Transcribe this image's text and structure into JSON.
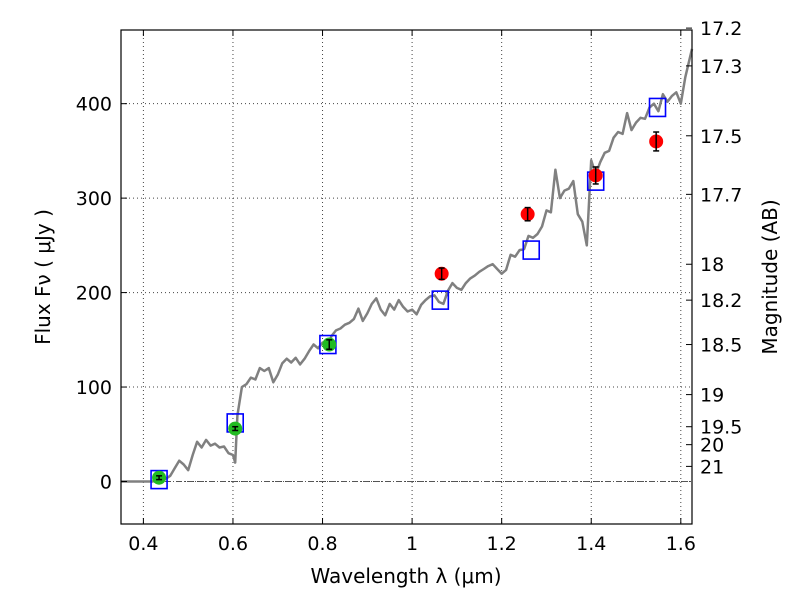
{
  "chart_data": {
    "type": "scatter",
    "title": "",
    "xlabel": "Wavelength  λ (μm)",
    "ylabel": "Flux  Fν  ( μJy )",
    "ylabel_right": "Magnitude (AB)",
    "xlim": [
      0.35,
      1.625
    ],
    "ylim": [
      -45,
      478
    ],
    "xticks": [
      0.4,
      0.6,
      0.8,
      1.0,
      1.2,
      1.4,
      1.6
    ],
    "xtick_labels": [
      "0.4",
      "0.6",
      "0.8",
      "1",
      "1.2",
      "1.4",
      "1.6"
    ],
    "yticks": [
      0,
      100,
      200,
      300,
      400
    ],
    "ytick_labels": [
      "0",
      "100",
      "200",
      "300",
      "400"
    ],
    "right_ticks": [
      {
        "label": "17.2",
        "flux": 480
      },
      {
        "label": "17.3",
        "flux": 440
      },
      {
        "label": "17.5",
        "flux": 366
      },
      {
        "label": "17.7",
        "flux": 304
      },
      {
        "label": "18",
        "flux": 230
      },
      {
        "label": "18.2",
        "flux": 192
      },
      {
        "label": "18.5",
        "flux": 145
      },
      {
        "label": "19",
        "flux": 92
      },
      {
        "label": "19.5",
        "flux": 58
      },
      {
        "label": "20",
        "flux": 39
      },
      {
        "label": "21",
        "flux": 16
      }
    ],
    "grid": true,
    "hline_y": 0,
    "colors": {
      "spectrum": "#808080",
      "model": "#0000ff",
      "optical": "#22bb22",
      "nir": "#ff0000",
      "errorbar": "#000000",
      "grid": "#444444"
    },
    "series": [
      {
        "name": "template spectrum",
        "kind": "line",
        "x": [
          0.35,
          0.4,
          0.41,
          0.42,
          0.43,
          0.44,
          0.45,
          0.46,
          0.47,
          0.48,
          0.49,
          0.5,
          0.51,
          0.52,
          0.53,
          0.54,
          0.55,
          0.56,
          0.57,
          0.58,
          0.59,
          0.6,
          0.605,
          0.61,
          0.62,
          0.63,
          0.64,
          0.65,
          0.66,
          0.67,
          0.68,
          0.69,
          0.7,
          0.71,
          0.72,
          0.73,
          0.74,
          0.75,
          0.76,
          0.77,
          0.78,
          0.79,
          0.8,
          0.81,
          0.82,
          0.83,
          0.84,
          0.85,
          0.86,
          0.87,
          0.88,
          0.89,
          0.9,
          0.91,
          0.92,
          0.93,
          0.94,
          0.95,
          0.96,
          0.97,
          0.98,
          0.99,
          1.0,
          1.01,
          1.02,
          1.03,
          1.04,
          1.05,
          1.06,
          1.07,
          1.08,
          1.09,
          1.1,
          1.11,
          1.12,
          1.13,
          1.14,
          1.15,
          1.16,
          1.17,
          1.18,
          1.19,
          1.2,
          1.21,
          1.22,
          1.23,
          1.24,
          1.25,
          1.26,
          1.27,
          1.28,
          1.29,
          1.3,
          1.31,
          1.32,
          1.33,
          1.34,
          1.35,
          1.36,
          1.37,
          1.38,
          1.39,
          1.4,
          1.41,
          1.42,
          1.43,
          1.44,
          1.45,
          1.46,
          1.47,
          1.48,
          1.49,
          1.5,
          1.51,
          1.52,
          1.53,
          1.54,
          1.55,
          1.56,
          1.57,
          1.58,
          1.59,
          1.6,
          1.61,
          1.625
        ],
        "y": [
          0,
          0,
          0,
          0,
          1,
          3,
          3,
          6,
          14,
          22,
          18,
          12,
          28,
          42,
          36,
          44,
          38,
          40,
          36,
          37,
          30,
          28,
          20,
          70,
          100,
          103,
          110,
          108,
          120,
          117,
          120,
          105,
          113,
          125,
          130,
          126,
          131,
          124,
          130,
          138,
          145,
          141,
          147,
          142,
          154,
          160,
          162,
          166,
          168,
          172,
          183,
          170,
          178,
          188,
          194,
          182,
          176,
          188,
          182,
          192,
          185,
          180,
          182,
          177,
          187,
          192,
          196,
          197,
          190,
          188,
          202,
          210,
          205,
          203,
          210,
          215,
          218,
          222,
          225,
          228,
          230,
          225,
          220,
          224,
          240,
          238,
          245,
          246,
          260,
          258,
          262,
          270,
          287,
          285,
          330,
          300,
          308,
          310,
          318,
          283,
          275,
          250,
          340,
          325,
          338,
          348,
          350,
          364,
          370,
          368,
          390,
          372,
          380,
          385,
          384,
          396,
          400,
          392,
          410,
          402,
          408,
          412,
          400,
          428,
          458
        ]
      },
      {
        "name": "model",
        "kind": "squares",
        "x": [
          0.435,
          0.605,
          0.812,
          1.063,
          1.266,
          1.41,
          1.548
        ],
        "y": [
          2,
          62,
          145,
          192,
          245,
          318,
          396
        ]
      },
      {
        "name": "optical",
        "kind": "points",
        "x": [
          0.435,
          0.605,
          0.815
        ],
        "y": [
          4,
          56,
          145
        ],
        "err": [
          2,
          2,
          5
        ]
      },
      {
        "name": "nir",
        "kind": "points",
        "x": [
          1.066,
          1.258,
          1.41,
          1.545
        ],
        "y": [
          220,
          283,
          324,
          360
        ],
        "err": [
          6,
          7,
          9,
          10
        ]
      }
    ]
  }
}
